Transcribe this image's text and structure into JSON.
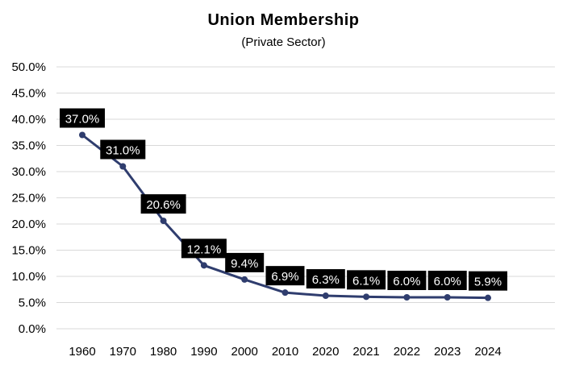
{
  "chart_data": {
    "type": "line",
    "title": "Union Membership",
    "subtitle": "(Private Sector)",
    "xlabel": "",
    "ylabel": "",
    "categories": [
      "1960",
      "1970",
      "1980",
      "1990",
      "2000",
      "2010",
      "2020",
      "2021",
      "2022",
      "2023",
      "2024"
    ],
    "series": [
      {
        "values": [
          37.0,
          31.0,
          20.6,
          12.1,
          9.4,
          6.9,
          6.3,
          6.1,
          6.0,
          6.0,
          5.9
        ],
        "labels": [
          "37.0%",
          "31.0%",
          "20.6%",
          "12.1%",
          "9.4%",
          "6.9%",
          "6.3%",
          "6.1%",
          "6.0%",
          "6.0%",
          "5.9%"
        ],
        "color": "#2F3D6E"
      }
    ],
    "ylim": [
      0,
      50
    ],
    "yticks": [
      "0.0%",
      "5.0%",
      "10.0%",
      "15.0%",
      "20.0%",
      "25.0%",
      "30.0%",
      "35.0%",
      "40.0%",
      "45.0%",
      "50.0%"
    ],
    "grid": true,
    "legend": "none",
    "label_box_color": "#000000",
    "label_text_color": "#ffffff",
    "gridline_color": "#D9D9D9"
  }
}
